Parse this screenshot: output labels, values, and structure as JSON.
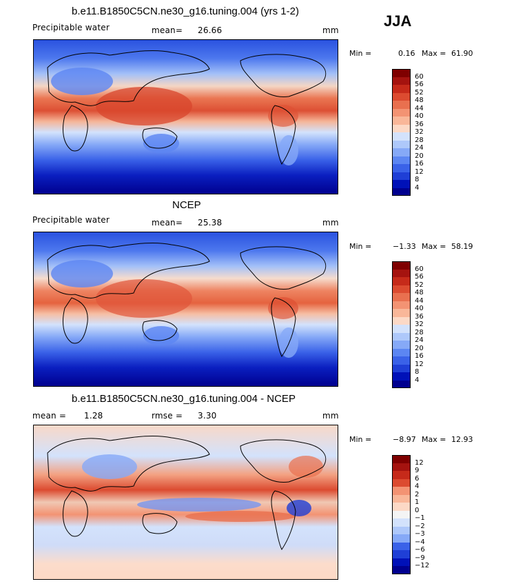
{
  "season": "JJA",
  "palette_abs": [
    "#00008f",
    "#0011b8",
    "#1f3fd6",
    "#3a62e8",
    "#5c86f2",
    "#86a9f7",
    "#aec8fa",
    "#d3e2fc",
    "#f4f4f4",
    "#fcd9c6",
    "#f9b799",
    "#f39373",
    "#e9704f",
    "#dc4b30",
    "#c62a1a",
    "#a5130f",
    "#7f0000"
  ],
  "palette_diff": [
    "#00008f",
    "#0011b8",
    "#1f3fd6",
    "#3a62e8",
    "#5c86f2",
    "#86a9f7",
    "#aec8fa",
    "#d3e2fc",
    "#f4f4f4",
    "#fcd9c6",
    "#f9b799",
    "#f39373",
    "#e9704f",
    "#dc4b30",
    "#c62a1a",
    "#a5130f",
    "#7f0000"
  ],
  "panels": [
    {
      "title": "b.e11.B1850C5CN.ne30_g16.tuning.004 (yrs 1-2)",
      "variable_label": "Precipitable water",
      "stat_label": "mean=",
      "stat_value": "26.66",
      "units": "mm",
      "min_label": "Min =",
      "min_value": "0.16",
      "max_label": "Max =",
      "max_value": "61.90",
      "levels": [
        "60",
        "56",
        "52",
        "48",
        "44",
        "40",
        "36",
        "32",
        "28",
        "24",
        "20",
        "16",
        "12",
        "8",
        "4"
      ]
    },
    {
      "title": "NCEP",
      "variable_label": "Precipitable water",
      "stat_label": "mean=",
      "stat_value": "25.38",
      "units": "mm",
      "min_label": "Min =",
      "min_value": "−1.33",
      "max_label": "Max =",
      "max_value": "58.19",
      "levels": [
        "60",
        "56",
        "52",
        "48",
        "44",
        "40",
        "36",
        "32",
        "28",
        "24",
        "20",
        "16",
        "12",
        "8",
        "4"
      ]
    },
    {
      "title": "b.e11.B1850C5CN.ne30_g16.tuning.004 - NCEP",
      "variable_label": "mean =",
      "variable_value": "1.28",
      "stat_label": "rmse =",
      "stat_value": "3.30",
      "units": "mm",
      "min_label": "Min =",
      "min_value": "−8.97",
      "max_label": "Max =",
      "max_value": "12.93",
      "levels": [
        "12",
        "9",
        "6",
        "4",
        "2",
        "1",
        "0",
        "−1",
        "−2",
        "−3",
        "−4",
        "−6",
        "−9",
        "−12"
      ]
    }
  ]
}
